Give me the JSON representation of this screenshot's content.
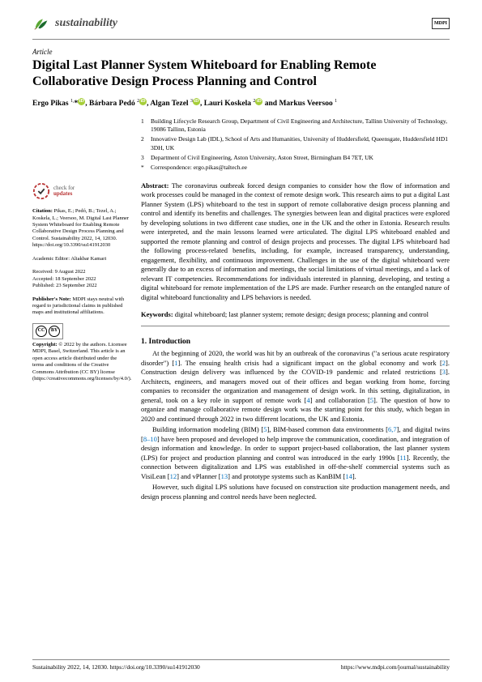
{
  "journal": {
    "name": "sustainability",
    "publisher_logo": "MDPI"
  },
  "article": {
    "type": "Article",
    "title": "Digital Last Planner System Whiteboard for Enabling Remote Collaborative Design Process Planning and Control",
    "authors_html": "Ergo Pikas <sup>1,</sup>*<span class='orcid'>iD</span>, Bárbara Pedó <sup>2</sup><span class='orcid'>iD</span>, Algan Tezel <sup>3</sup><span class='orcid'>iD</span>, Lauri Koskela <sup>2</sup><span class='orcid'>iD</span> and Markus Veersoo <sup>1</sup>"
  },
  "affiliations": [
    {
      "num": "1",
      "text": "Building Lifecycle Research Group, Department of Civil Engineering and Architecture, Tallinn University of Technology, 19086 Tallinn, Estonia"
    },
    {
      "num": "2",
      "text": "Innovative Design Lab (IDL), School of Arts and Humanities, University of Huddersfield, Queensgate, Huddersfield HD1 3DH, UK"
    },
    {
      "num": "3",
      "text": "Department of Civil Engineering, Aston University, Aston Street, Birmingham B4 7ET, UK"
    },
    {
      "num": "*",
      "text": "Correspondence: ergo.pikas@taltech.ee"
    }
  ],
  "abstract": {
    "label": "Abstract:",
    "text": "The coronavirus outbreak forced design companies to consider how the flow of information and work processes could be managed in the context of remote design work. This research aims to put a digital Last Planner System (LPS) whiteboard to the test in support of remote collaborative design process planning and control and identify its benefits and challenges. The synergies between lean and digital practices were explored by developing solutions in two different case studies, one in the UK and the other in Estonia. Research results were interpreted, and the main lessons learned were articulated. The digital LPS whiteboard enabled and supported the remote planning and control of design projects and processes. The digital LPS whiteboard had the following process-related benefits, including, for example, increased transparency, understanding, engagement, flexibility, and continuous improvement. Challenges in the use of the digital whiteboard were generally due to an excess of information and meetings, the social limitations of virtual meetings, and a lack of relevant IT competencies. Recommendations for individuals interested in planning, developing, and testing a digital whiteboard for remote implementation of the LPS are made. Further research on the entangled nature of digital whiteboard functionality and LPS behaviors is needed."
  },
  "keywords": {
    "label": "Keywords:",
    "text": "digital whiteboard; last planner system; remote design; design process; planning and control"
  },
  "section1": {
    "heading": "1. Introduction",
    "p1": "At the beginning of 2020, the world was hit by an outbreak of the coronavirus (\"a serious acute respiratory disorder\") [1]. The ensuing health crisis had a significant impact on the global economy and work [2]. Construction design delivery was influenced by the COVID-19 pandemic and related restrictions [3]. Architects, engineers, and managers moved out of their offices and began working from home, forcing companies to reconsider the organization and management of design work. In this setting, digitalization, in general, took on a key role in support of remote work [4] and collaboration [5]. The question of how to organize and manage collaborative remote design work was the starting point for this study, which began in 2020 and continued through 2022 in two different locations, the UK and Estonia.",
    "p2": "Building information modeling (BIM) [5], BIM-based common data environments [6,7], and digital twins [8–10] have been proposed and developed to help improve the communication, coordination, and integration of design information and knowledge. In order to support project-based collaboration, the last planner system (LPS) for project and production planning and control was introduced in the early 1990s [11]. Recently, the connection between digitalization and LPS was established in off-the-shelf commercial systems such as VisiLean [12] and vPlanner [13] and prototype systems such as KanBIM [14].",
    "p3": "However, such digital LPS solutions have focused on construction site production management needs, and design process planning and control needs have been neglected."
  },
  "sidebar": {
    "check_l1": "check for",
    "check_l2": "updates",
    "citation_label": "Citation:",
    "citation": "Pikas, E.; Pedó, B.; Tezel, A.; Koskela, L.; Veersoo, M. Digital Last Planner System Whiteboard for Enabling Remote Collaborative Design Process Planning and Control. Sustainability 2022, 14, 12030. https://doi.org/10.3390/su141912030",
    "editor_label": "Academic Editor:",
    "editor": "Aliakbar Kamari",
    "received": "Received: 9 August 2022",
    "accepted": "Accepted: 18 September 2022",
    "published": "Published: 23 September 2022",
    "pubnote_label": "Publisher's Note:",
    "pubnote": "MDPI stays neutral with regard to jurisdictional claims in published maps and institutional affiliations.",
    "copyright_label": "Copyright:",
    "copyright": "© 2022 by the authors. Licensee MDPI, Basel, Switzerland. This article is an open access article distributed under the terms and conditions of the Creative Commons Attribution (CC BY) license (https://creativecommons.org/licenses/by/4.0/)."
  },
  "footer": {
    "left": "Sustainability 2022, 14, 12030. https://doi.org/10.3390/su141912030",
    "right": "https://www.mdpi.com/journal/sustainability"
  },
  "colors": {
    "link": "#0070c0",
    "orcid": "#a6ce39",
    "leaf1": "#5aa833",
    "leaf2": "#1b6b2e",
    "check_red": "#b93434"
  }
}
